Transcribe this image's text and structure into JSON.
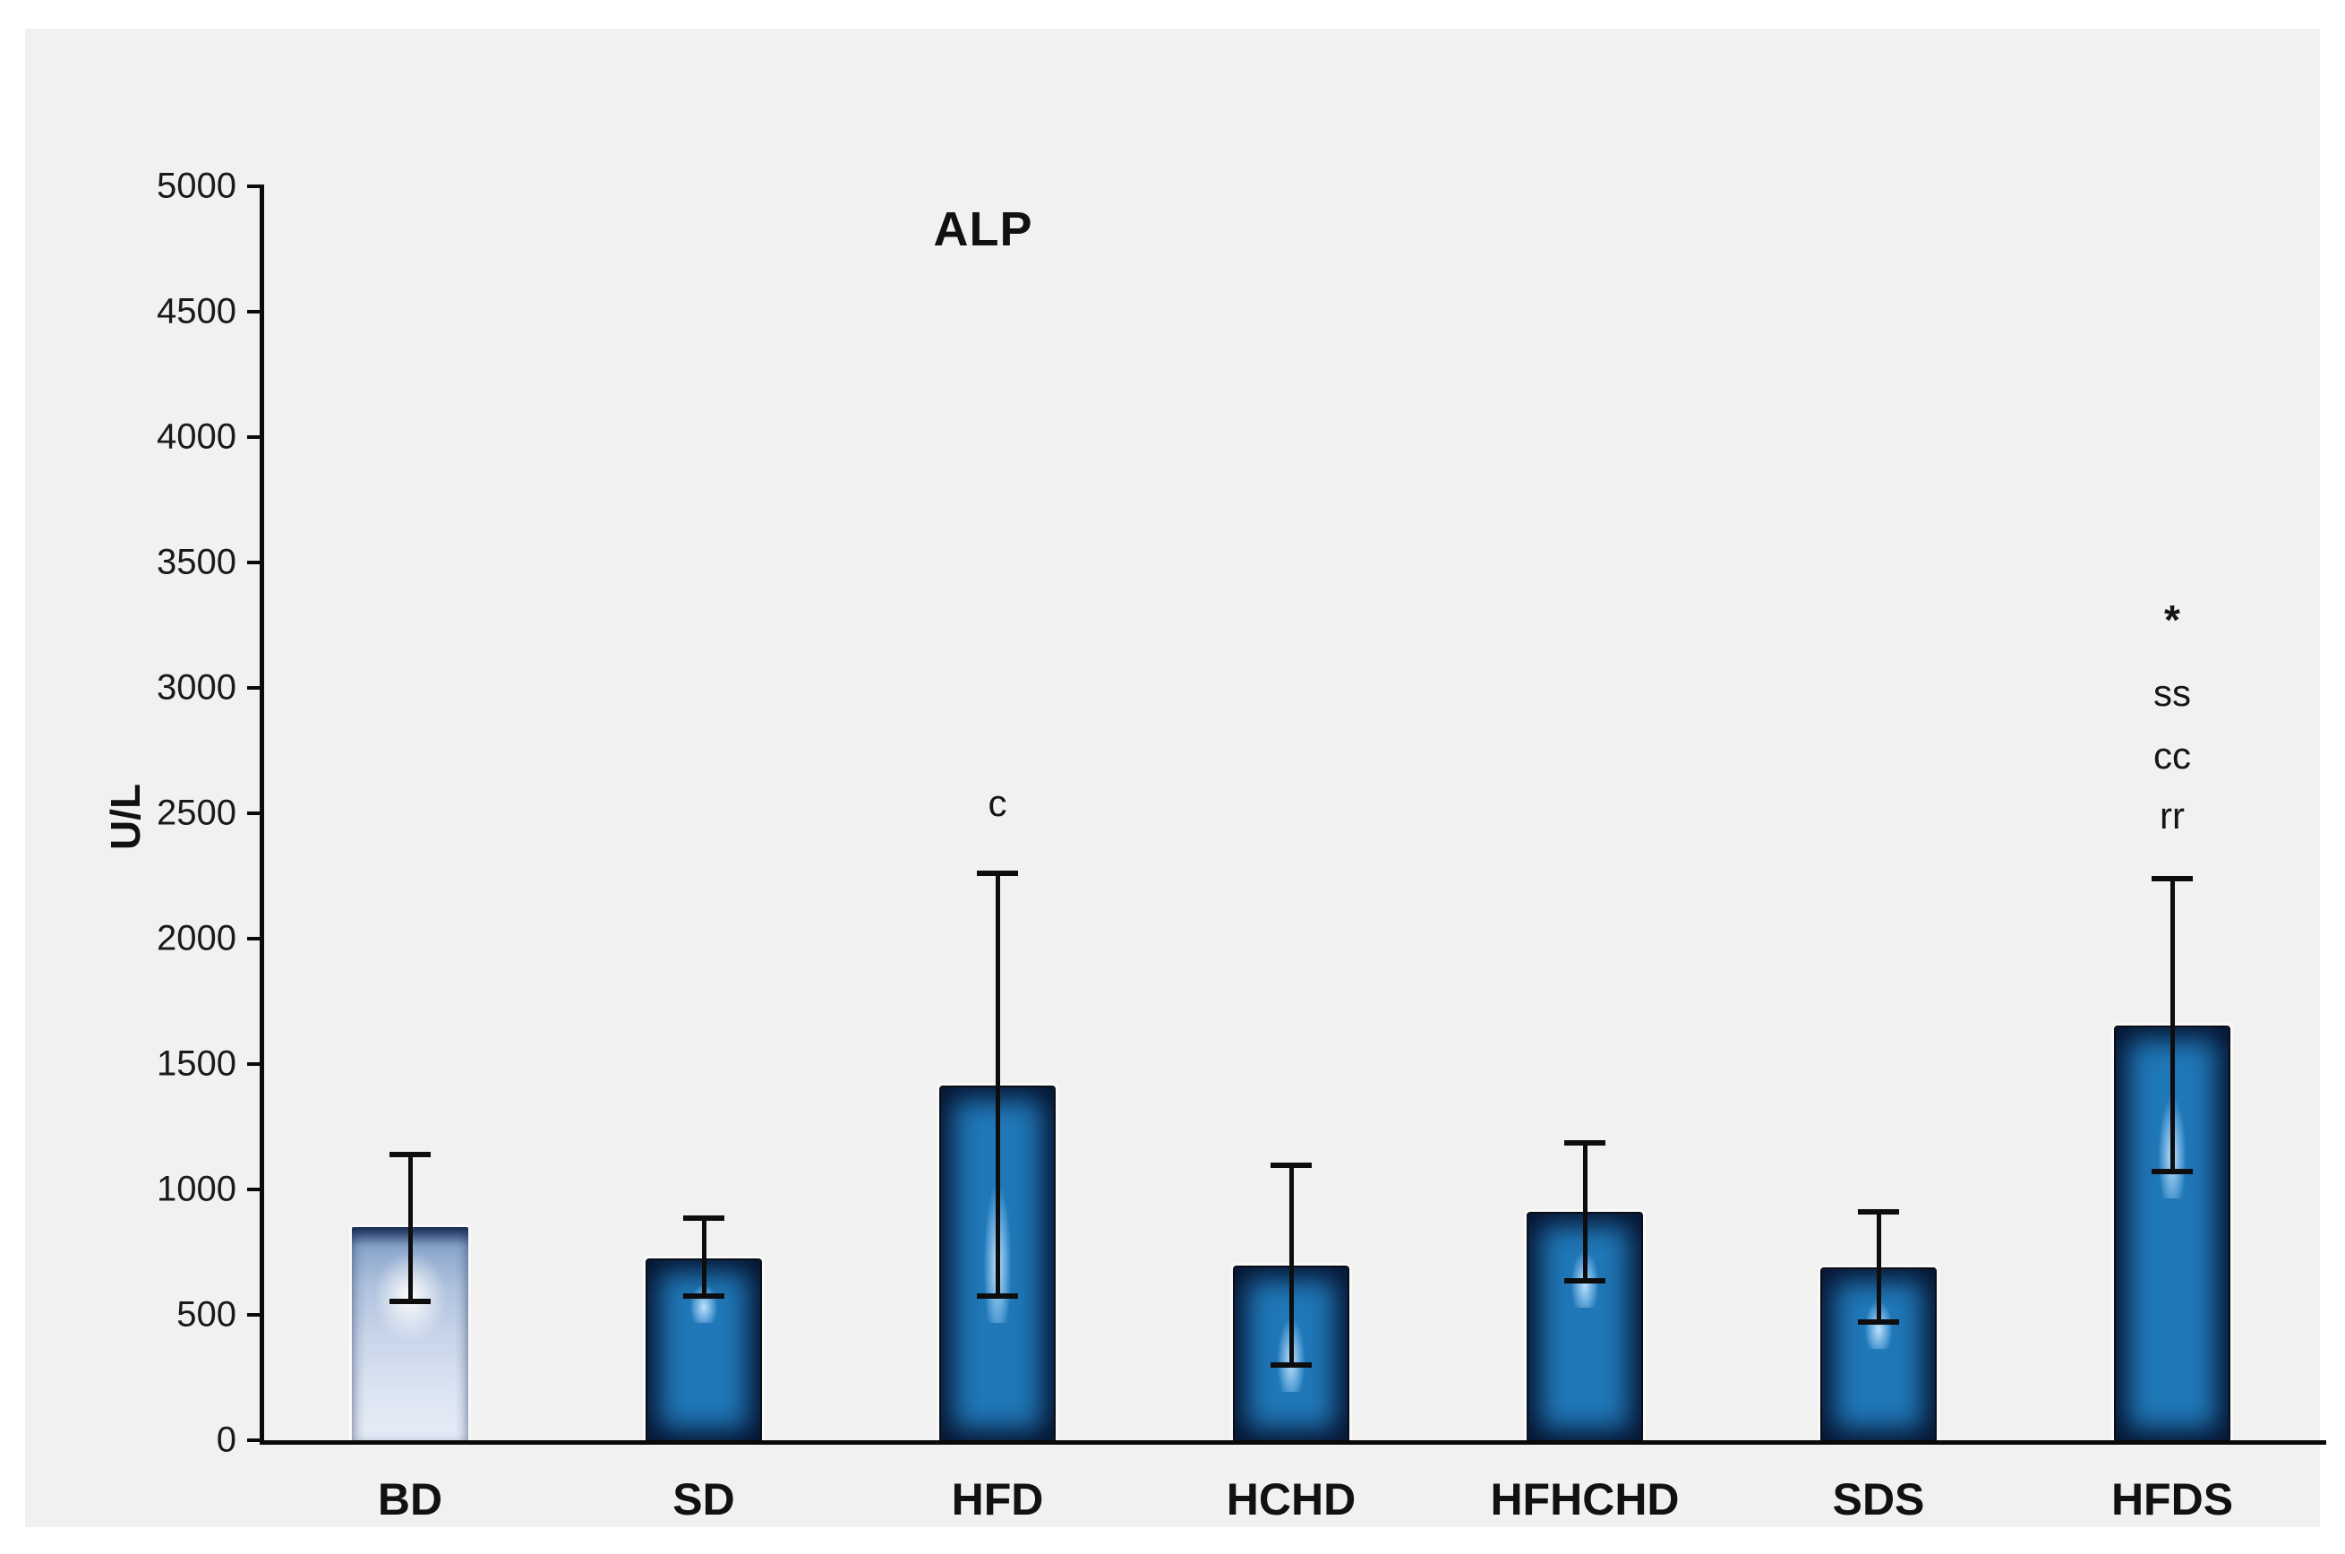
{
  "page": {
    "background": "#ffffff",
    "panel_background": "#f1f1f1"
  },
  "chart_data": {
    "type": "bar",
    "title": "ALP",
    "ylabel": "U/L",
    "xlabel": "",
    "ylim": [
      0,
      5000
    ],
    "ytick_step": 500,
    "yticks": [
      0,
      500,
      1000,
      1500,
      2000,
      2500,
      3000,
      3500,
      4000,
      4500,
      5000
    ],
    "grid": false,
    "legend": null,
    "categories": [
      "BD",
      "SD",
      "HFD",
      "HCHD",
      "HFHCHD",
      "SDS",
      "HFDS"
    ],
    "values": [
      850,
      725,
      1415,
      695,
      910,
      690,
      1655
    ],
    "whisker_high": [
      1140,
      885,
      2260,
      1095,
      1185,
      910,
      2240
    ],
    "whisker_low": [
      555,
      575,
      575,
      300,
      635,
      470,
      1070
    ],
    "bar_color": "#2078b8",
    "bar_edge_color": "#05122e",
    "first_bar_style": "light-gradient",
    "annotations": [
      {
        "category": "HFD",
        "labels": [
          {
            "text": "c",
            "y": 2540
          }
        ]
      },
      {
        "category": "HFDS",
        "labels": [
          {
            "text": "*",
            "y": 3270
          },
          {
            "text": "ss",
            "y": 2980
          },
          {
            "text": "cc",
            "y": 2730
          },
          {
            "text": "rr",
            "y": 2490
          }
        ]
      }
    ]
  }
}
